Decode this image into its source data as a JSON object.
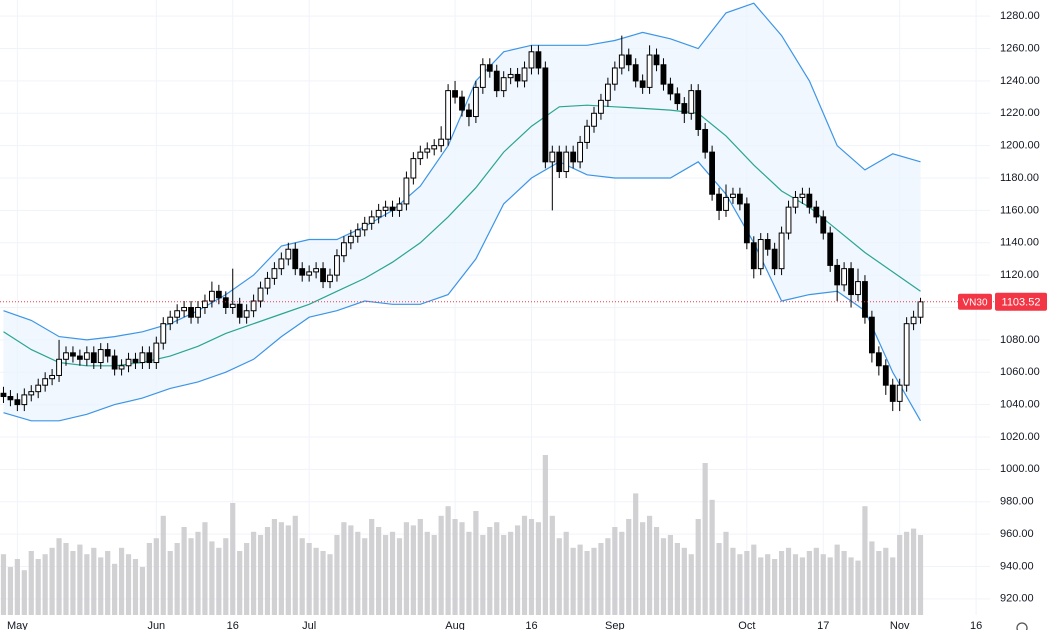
{
  "chart_data": {
    "type": "candlestick",
    "symbol": "VN30",
    "open": [
      1047,
      1045,
      1043,
      1040,
      1046,
      1048,
      1052,
      1056,
      1058,
      1068,
      1072,
      1070,
      1068,
      1072,
      1066,
      1074,
      1070,
      1062,
      1064,
      1068,
      1066,
      1072,
      1066,
      1078,
      1090,
      1094,
      1098,
      1100,
      1094,
      1100,
      1104,
      1110,
      1106,
      1100,
      1102,
      1094,
      1098,
      1104,
      1112,
      1118,
      1124,
      1130,
      1136,
      1124,
      1120,
      1122,
      1124,
      1116,
      1120,
      1132,
      1140,
      1144,
      1148,
      1152,
      1156,
      1160,
      1162,
      1160,
      1164,
      1180,
      1192,
      1196,
      1198,
      1200,
      1204,
      1234,
      1230,
      1222,
      1218,
      1236,
      1250,
      1246,
      1234,
      1242,
      1244,
      1240,
      1248,
      1258,
      1248,
      1190,
      1196,
      1184,
      1196,
      1190,
      1202,
      1212,
      1220,
      1228,
      1238,
      1248,
      1256,
      1250,
      1240,
      1236,
      1256,
      1250,
      1238,
      1232,
      1226,
      1220,
      1234,
      1210,
      1196,
      1170,
      1160,
      1168,
      1170,
      1164,
      1140,
      1124,
      1142,
      1136,
      1124,
      1146,
      1162,
      1168,
      1170,
      1162,
      1156,
      1146,
      1126,
      1114,
      1124,
      1108,
      1116,
      1094,
      1072,
      1064,
      1052,
      1042,
      1052,
      1090,
      1094
    ],
    "high": [
      1051,
      1049,
      1047,
      1050,
      1052,
      1056,
      1060,
      1062,
      1080,
      1076,
      1076,
      1074,
      1076,
      1076,
      1078,
      1078,
      1074,
      1068,
      1072,
      1072,
      1076,
      1076,
      1082,
      1094,
      1098,
      1102,
      1104,
      1104,
      1104,
      1108,
      1116,
      1114,
      1110,
      1124,
      1106,
      1102,
      1108,
      1116,
      1122,
      1128,
      1134,
      1140,
      1140,
      1128,
      1126,
      1128,
      1128,
      1124,
      1136,
      1144,
      1148,
      1152,
      1156,
      1160,
      1164,
      1166,
      1166,
      1168,
      1184,
      1196,
      1200,
      1202,
      1204,
      1212,
      1238,
      1240,
      1234,
      1226,
      1240,
      1254,
      1254,
      1250,
      1246,
      1248,
      1248,
      1252,
      1262,
      1262,
      1252,
      1200,
      1200,
      1200,
      1200,
      1206,
      1216,
      1224,
      1232,
      1242,
      1252,
      1268,
      1260,
      1254,
      1244,
      1262,
      1260,
      1254,
      1242,
      1236,
      1230,
      1238,
      1238,
      1214,
      1200,
      1174,
      1176,
      1174,
      1174,
      1168,
      1144,
      1146,
      1146,
      1140,
      1150,
      1166,
      1172,
      1174,
      1174,
      1166,
      1160,
      1150,
      1130,
      1128,
      1128,
      1124,
      1120,
      1098,
      1076,
      1068,
      1056,
      1056,
      1094,
      1098,
      1106
    ],
    "low": [
      1041,
      1039,
      1036,
      1036,
      1042,
      1044,
      1048,
      1052,
      1054,
      1064,
      1066,
      1064,
      1064,
      1062,
      1062,
      1066,
      1058,
      1058,
      1060,
      1062,
      1062,
      1062,
      1062,
      1074,
      1086,
      1090,
      1094,
      1090,
      1090,
      1096,
      1100,
      1102,
      1096,
      1096,
      1090,
      1090,
      1094,
      1100,
      1108,
      1114,
      1120,
      1126,
      1120,
      1116,
      1116,
      1118,
      1112,
      1112,
      1116,
      1128,
      1136,
      1140,
      1144,
      1148,
      1152,
      1156,
      1156,
      1156,
      1160,
      1176,
      1188,
      1192,
      1194,
      1196,
      1200,
      1226,
      1218,
      1212,
      1214,
      1232,
      1242,
      1230,
      1230,
      1238,
      1236,
      1236,
      1244,
      1244,
      1186,
      1160,
      1180,
      1180,
      1186,
      1186,
      1198,
      1208,
      1216,
      1224,
      1234,
      1244,
      1246,
      1236,
      1232,
      1232,
      1246,
      1234,
      1228,
      1222,
      1214,
      1216,
      1206,
      1192,
      1166,
      1154,
      1156,
      1164,
      1160,
      1136,
      1118,
      1120,
      1132,
      1120,
      1120,
      1142,
      1158,
      1164,
      1158,
      1152,
      1142,
      1122,
      1104,
      1110,
      1100,
      1104,
      1090,
      1066,
      1058,
      1046,
      1036,
      1036,
      1048,
      1086,
      1090
    ],
    "close": [
      1045,
      1043,
      1040,
      1046,
      1048,
      1052,
      1056,
      1058,
      1068,
      1072,
      1070,
      1068,
      1072,
      1066,
      1074,
      1070,
      1062,
      1064,
      1068,
      1066,
      1072,
      1066,
      1078,
      1090,
      1094,
      1098,
      1100,
      1094,
      1100,
      1104,
      1110,
      1106,
      1100,
      1102,
      1094,
      1098,
      1104,
      1112,
      1118,
      1124,
      1130,
      1136,
      1124,
      1120,
      1122,
      1124,
      1116,
      1120,
      1132,
      1140,
      1144,
      1148,
      1152,
      1156,
      1160,
      1162,
      1160,
      1164,
      1180,
      1192,
      1196,
      1198,
      1200,
      1204,
      1234,
      1230,
      1222,
      1218,
      1236,
      1250,
      1246,
      1234,
      1242,
      1244,
      1240,
      1248,
      1258,
      1248,
      1190,
      1196,
      1184,
      1196,
      1190,
      1202,
      1212,
      1220,
      1228,
      1238,
      1248,
      1256,
      1250,
      1240,
      1236,
      1256,
      1250,
      1238,
      1232,
      1226,
      1220,
      1234,
      1210,
      1196,
      1170,
      1160,
      1168,
      1170,
      1164,
      1140,
      1124,
      1142,
      1136,
      1124,
      1146,
      1162,
      1168,
      1170,
      1162,
      1156,
      1146,
      1126,
      1114,
      1124,
      1108,
      1116,
      1094,
      1072,
      1064,
      1052,
      1042,
      1052,
      1090,
      1094,
      1103.52
    ],
    "volume": [
      38,
      30,
      35,
      28,
      40,
      35,
      38,
      42,
      48,
      45,
      40,
      44,
      38,
      42,
      36,
      40,
      32,
      42,
      38,
      35,
      30,
      45,
      48,
      62,
      40,
      45,
      55,
      48,
      52,
      58,
      46,
      42,
      48,
      70,
      40,
      45,
      52,
      50,
      55,
      60,
      58,
      56,
      62,
      48,
      45,
      42,
      40,
      38,
      50,
      58,
      56,
      52,
      48,
      60,
      55,
      50,
      52,
      48,
      58,
      56,
      60,
      52,
      50,
      62,
      68,
      60,
      58,
      52,
      65,
      50,
      55,
      58,
      50,
      52,
      56,
      62,
      60,
      58,
      100,
      62,
      48,
      52,
      42,
      44,
      40,
      42,
      45,
      48,
      55,
      52,
      60,
      76,
      58,
      62,
      55,
      48,
      50,
      45,
      42,
      38,
      60,
      95,
      72,
      45,
      52,
      42,
      38,
      40,
      44,
      36,
      38,
      35,
      40,
      42,
      38,
      36,
      40,
      42,
      38,
      36,
      44,
      40,
      36,
      34,
      68,
      46,
      40,
      42,
      36,
      50,
      52,
      54,
      50
    ],
    "vlim": [
      0,
      100
    ],
    "bands": {
      "x": [
        0,
        4,
        8,
        12,
        16,
        20,
        24,
        28,
        32,
        36,
        40,
        44,
        48,
        52,
        56,
        60,
        64,
        68,
        72,
        76,
        80,
        84,
        88,
        92,
        96,
        100,
        104,
        108,
        112,
        116,
        120,
        124,
        128,
        132
      ],
      "upper": [
        1098,
        1092,
        1082,
        1080,
        1082,
        1085,
        1090,
        1098,
        1108,
        1120,
        1138,
        1142,
        1142,
        1150,
        1160,
        1175,
        1200,
        1240,
        1258,
        1262,
        1262,
        1262,
        1265,
        1270,
        1266,
        1260,
        1282,
        1288,
        1268,
        1240,
        1200,
        1185,
        1195,
        1190
      ],
      "middle": [
        1085,
        1074,
        1066,
        1064,
        1064,
        1066,
        1070,
        1076,
        1084,
        1090,
        1096,
        1102,
        1110,
        1118,
        1128,
        1140,
        1156,
        1174,
        1196,
        1212,
        1224,
        1225,
        1224,
        1223,
        1222,
        1220,
        1206,
        1188,
        1172,
        1162,
        1148,
        1134,
        1122,
        1110
      ],
      "lower": [
        1035,
        1030,
        1030,
        1034,
        1040,
        1044,
        1050,
        1054,
        1060,
        1068,
        1082,
        1094,
        1098,
        1104,
        1102,
        1102,
        1108,
        1130,
        1164,
        1180,
        1190,
        1182,
        1180,
        1180,
        1180,
        1190,
        1170,
        1140,
        1104,
        1108,
        1110,
        1098,
        1060,
        1030
      ],
      "band_color": "#3d95e6",
      "fill_color": "#e9f3fd",
      "middle_color": "#2aa58f"
    },
    "up_color": "#ffffff",
    "down_color": "#000000",
    "volume_color": "#c9c9cd",
    "last_price_color": "#f23645",
    "ylim": [
      910,
      1290
    ],
    "yticks": [
      {
        "value": 1280,
        "label": "1280.00"
      },
      {
        "value": 1260,
        "label": "1260.00"
      },
      {
        "value": 1240,
        "label": "1240.00"
      },
      {
        "value": 1220,
        "label": "1220.00"
      },
      {
        "value": 1200,
        "label": "1200.00"
      },
      {
        "value": 1180,
        "label": "1180.00"
      },
      {
        "value": 1160,
        "label": "1160.00"
      },
      {
        "value": 1140,
        "label": "1140.00"
      },
      {
        "value": 1120,
        "label": "1120.00"
      },
      {
        "value": 1100,
        "label": "1100.00"
      },
      {
        "value": 1080,
        "label": "1080.00"
      },
      {
        "value": 1060,
        "label": "1060.00"
      },
      {
        "value": 1040,
        "label": "1040.00"
      },
      {
        "value": 1020,
        "label": "1020.00"
      },
      {
        "value": 1000,
        "label": "1000.00"
      },
      {
        "value": 980,
        "label": "980.00"
      },
      {
        "value": 960,
        "label": "960.00"
      },
      {
        "value": 940,
        "label": "940.00"
      },
      {
        "value": 920,
        "label": "920.00"
      }
    ],
    "xlim": [
      -0.5,
      142
    ],
    "xticks": [
      {
        "value": 2,
        "label": "May"
      },
      {
        "value": 22,
        "label": "Jun"
      },
      {
        "value": 33,
        "label": "16"
      },
      {
        "value": 44,
        "label": "Jul"
      },
      {
        "value": 65,
        "label": "Aug"
      },
      {
        "value": 76,
        "label": "16"
      },
      {
        "value": 88,
        "label": "Sep"
      },
      {
        "value": 107,
        "label": "Oct"
      },
      {
        "value": 118,
        "label": "17"
      },
      {
        "value": 129,
        "label": "Nov"
      },
      {
        "value": 140,
        "label": "16"
      }
    ],
    "grid": true
  }
}
